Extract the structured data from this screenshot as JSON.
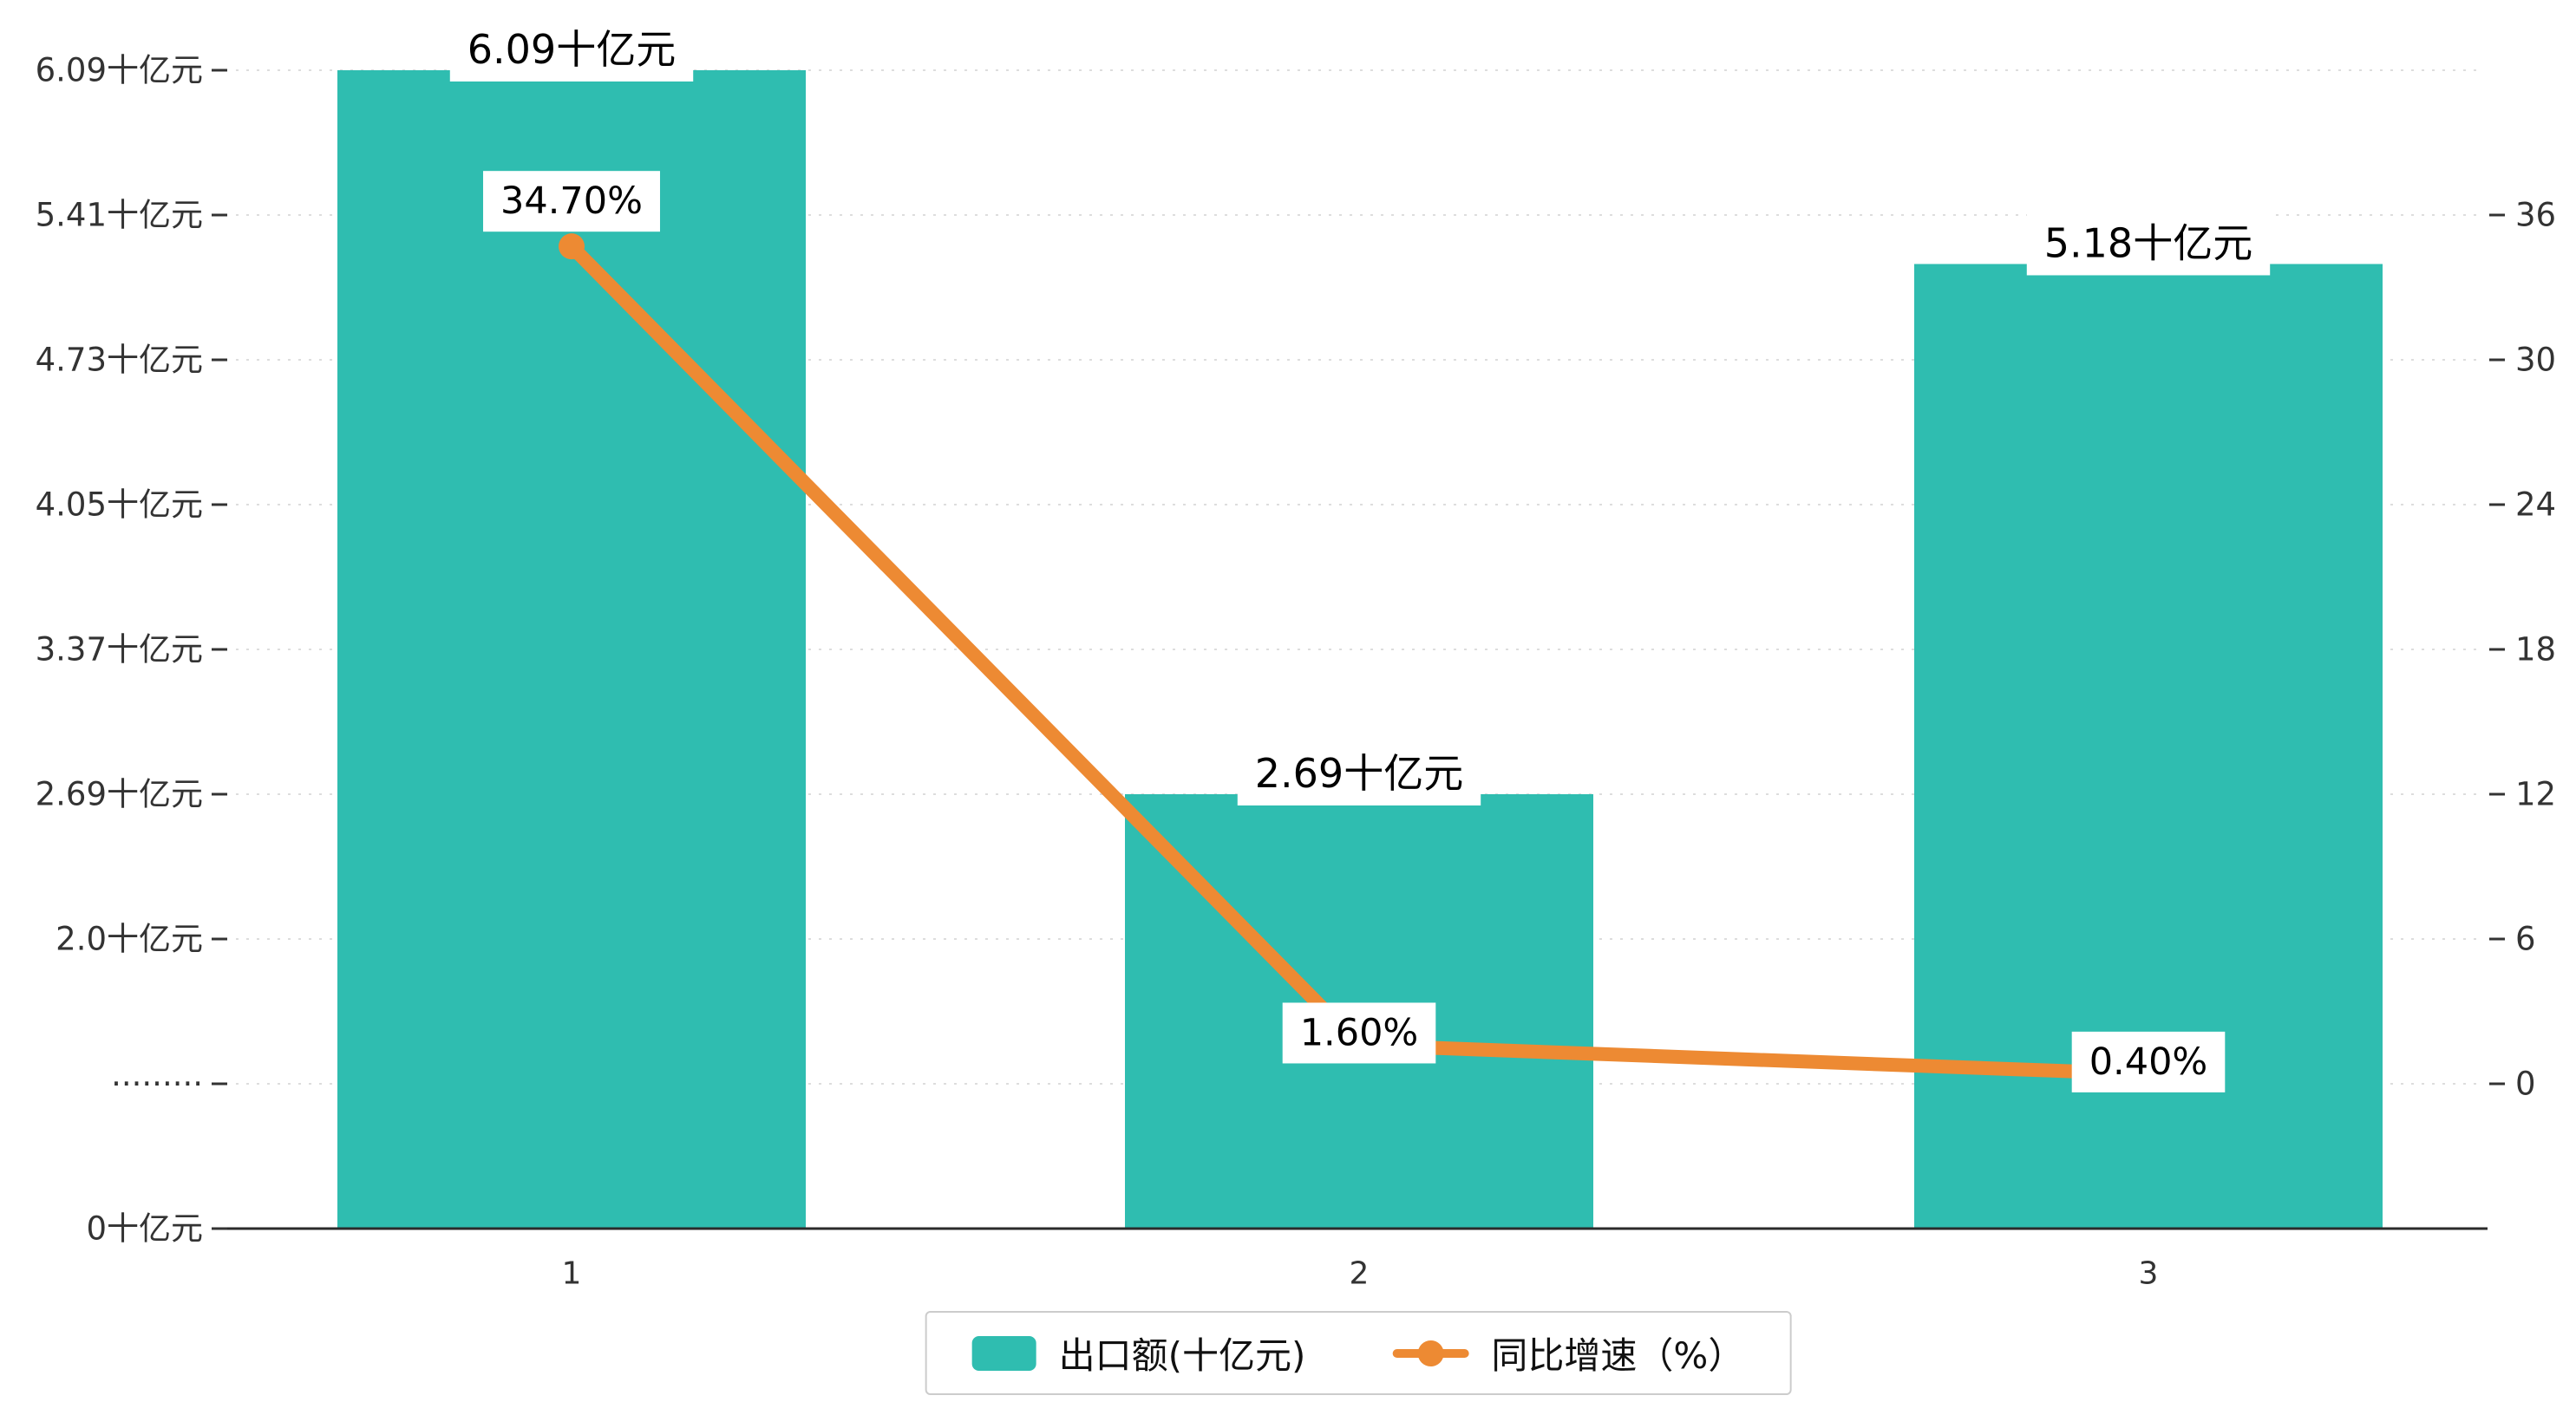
{
  "colors": {
    "bar": "#2FBDB0",
    "line": "#ED8A33",
    "grid": "#DDDDDD",
    "axis": "#2B2B2B",
    "tick_text": "#333333",
    "data_label_text": "#000000",
    "label_bg": "#FFFFFF"
  },
  "chart_data": {
    "type": "bar+line combo",
    "title": "",
    "categories": [
      "1",
      "2",
      "3"
    ],
    "series": [
      {
        "name": "出口额(十亿元)",
        "type": "bar",
        "axis": "left",
        "values": [
          6.09,
          2.69,
          5.18
        ],
        "data_labels": [
          "6.09十亿元",
          "2.69十亿元",
          "5.18十亿元"
        ]
      },
      {
        "name": "同比增速（%）",
        "type": "line",
        "axis": "right",
        "values": [
          34.7,
          1.6,
          0.4
        ],
        "data_labels": [
          "34.70%",
          "1.60%",
          "0.40%"
        ]
      }
    ],
    "left_axis": {
      "tick_labels": [
        "6.09十亿元",
        "5.41十亿元",
        "4.73十亿元",
        "4.05十亿元",
        "3.37十亿元",
        "2.69十亿元",
        "2.0十亿元",
        "·········",
        "0十亿元"
      ],
      "tick_values": [
        6.09,
        5.41,
        4.73,
        4.05,
        3.37,
        2.69,
        2.0,
        1.0,
        0
      ]
    },
    "right_axis": {
      "tick_labels": [
        "36",
        "30",
        "24",
        "18",
        "12",
        "6",
        "0"
      ],
      "min": 0,
      "max": 36
    },
    "legend": [
      {
        "label": "出口额(十亿元)"
      },
      {
        "label": "同比增速（%）"
      }
    ],
    "grid": "horizontal dashed lines",
    "legend_position": "bottom-center"
  }
}
